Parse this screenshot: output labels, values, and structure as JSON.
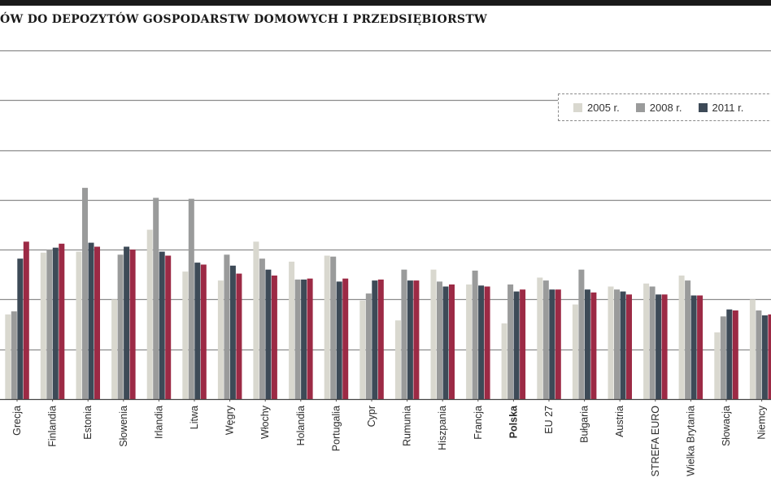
{
  "chart_data": {
    "type": "bar",
    "title": "ÓW DO DEPOZYTÓW GOSPODARSTW DOMOWYCH I PRZEDSIĘBIORSTW",
    "categories": [
      "Grecja",
      "Finlandia",
      "Estonia",
      "Słowenia",
      "Irlandia",
      "Litwa",
      "Węgry",
      "Włochy",
      "Holandia",
      "Portugalia",
      "Cypr",
      "Rumunia",
      "Hiszpania",
      "Francja",
      "Polska",
      "EU 27",
      "Bułgaria",
      "Austria",
      "STREFA EURO",
      "Wielka Brytania",
      "Słowacja",
      "Niemcy"
    ],
    "highlight_category": "Polska",
    "series": [
      {
        "name": "2005 r.",
        "color": "#d9d8cf",
        "values": [
          0.85,
          1.47,
          1.48,
          1.0,
          1.7,
          1.28,
          1.19,
          1.58,
          1.38,
          1.44,
          0.99,
          0.79,
          1.3,
          1.15,
          0.76,
          1.22,
          0.95,
          1.13,
          1.16,
          1.24,
          0.67,
          1.0
        ]
      },
      {
        "name": "2008 r.",
        "color": "#9a9b9b",
        "values": [
          0.88,
          1.5,
          2.12,
          1.45,
          2.02,
          2.01,
          1.45,
          1.41,
          1.2,
          1.43,
          1.06,
          1.3,
          1.18,
          1.29,
          1.15,
          1.19,
          1.3,
          1.1,
          1.13,
          1.19,
          0.83,
          0.89
        ]
      },
      {
        "name": "2011 r.",
        "color": "#3d4a57",
        "values": [
          1.41,
          1.52,
          1.57,
          1.53,
          1.48,
          1.37,
          1.34,
          1.3,
          1.2,
          1.18,
          1.19,
          1.19,
          1.13,
          1.14,
          1.08,
          1.1,
          1.1,
          1.08,
          1.05,
          1.04,
          0.9,
          0.84
        ]
      },
      {
        "name": "",
        "color": "#9c2a45",
        "values": [
          1.58,
          1.56,
          1.53,
          1.5,
          1.44,
          1.35,
          1.26,
          1.24,
          1.21,
          1.21,
          1.2,
          1.19,
          1.15,
          1.13,
          1.1,
          1.1,
          1.07,
          1.05,
          1.05,
          1.04,
          0.89,
          0.85
        ]
      }
    ],
    "ylim": [
      0,
      3.5
    ],
    "grid": true,
    "legend_position": "top-right",
    "xlabel": "",
    "ylabel": ""
  }
}
